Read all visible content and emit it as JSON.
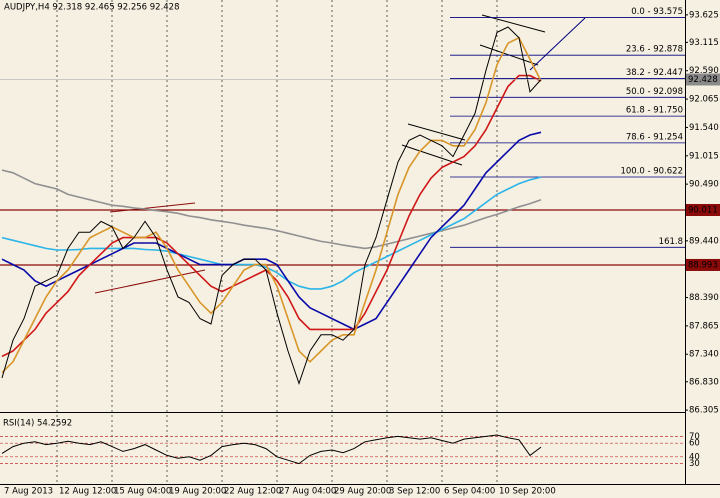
{
  "chart_data": [
    {
      "type": "line",
      "title": "AUDJPY,H4  92.318 92.465 92.256 92.428",
      "categories": [
        "7 Aug 2013",
        null,
        null,
        null,
        null,
        "12 Aug 12:00",
        null,
        null,
        null,
        null,
        "15 Aug 04:00",
        null,
        null,
        null,
        null,
        "19 Aug 20:00",
        null,
        null,
        null,
        null,
        "22 Aug 12:00",
        null,
        null,
        null,
        null,
        "27 Aug 04:00",
        null,
        null,
        null,
        null,
        "29 Aug 20:00",
        null,
        null,
        null,
        null,
        "3 Sep 12:00",
        null,
        null,
        null,
        null,
        "6 Sep 04:00",
        null,
        null,
        null,
        null,
        "10 Sep 20:00",
        null,
        null,
        null,
        null
      ],
      "ylim": [
        86.27,
        93.9
      ],
      "yticks": [
        93.625,
        93.115,
        {
          "value": 92.59,
          "label": "92.590"
        },
        92.065,
        {
          "value": 91.54,
          "label": "91.540"
        },
        91.015,
        {
          "value": 90.49,
          "label": "90.490"
        },
        {
          "value": 89.44,
          "label": "89.440"
        },
        {
          "value": 88.39,
          "label": "88.390"
        },
        87.865,
        {
          "value": 87.34,
          "label": "87.340"
        },
        {
          "value": 86.83,
          "label": "86.830"
        },
        86.305
      ],
      "grid": true,
      "series": [
        {
          "color": "#000000",
          "values": [
            86.9,
            87.6,
            88.0,
            88.6,
            88.7,
            88.8,
            89.3,
            89.6,
            89.6,
            89.8,
            89.7,
            89.3,
            89.5,
            89.8,
            89.5,
            88.9,
            88.4,
            88.3,
            88.0,
            87.9,
            88.8,
            89.0,
            89.1,
            89.1,
            88.9,
            88.1,
            87.4,
            86.8,
            87.4,
            87.7,
            87.7,
            87.6,
            87.8,
            89.0,
            89.5,
            90.2,
            90.9,
            91.3,
            91.4,
            91.3,
            91.2,
            91.0,
            91.4,
            91.8,
            92.6,
            93.3,
            93.4,
            93.2,
            92.2,
            92.428
          ]
        },
        {
          "color": "#d8962a",
          "values": [
            87.0,
            87.2,
            87.6,
            88.0,
            88.4,
            88.7,
            88.9,
            89.2,
            89.5,
            89.6,
            89.7,
            89.6,
            89.5,
            89.5,
            89.6,
            89.3,
            88.9,
            88.6,
            88.3,
            88.1,
            88.3,
            88.6,
            88.9,
            89.0,
            89.0,
            88.6,
            88.0,
            87.4,
            87.2,
            87.4,
            87.6,
            87.7,
            87.7,
            88.3,
            88.9,
            89.6,
            90.3,
            90.8,
            91.1,
            91.3,
            91.3,
            91.2,
            91.2,
            91.5,
            92.0,
            92.7,
            93.1,
            93.2,
            92.8,
            92.4
          ]
        },
        {
          "color": "#d01818",
          "values": [
            87.3,
            87.4,
            87.6,
            87.8,
            88.1,
            88.3,
            88.5,
            88.8,
            89.0,
            89.2,
            89.4,
            89.5,
            89.5,
            89.5,
            89.5,
            89.4,
            89.2,
            89.0,
            88.8,
            88.6,
            88.5,
            88.6,
            88.7,
            88.8,
            88.9,
            88.7,
            88.4,
            88.0,
            87.8,
            87.8,
            87.8,
            87.8,
            87.8,
            88.1,
            88.5,
            88.9,
            89.4,
            89.9,
            90.3,
            90.6,
            90.8,
            90.9,
            91.0,
            91.2,
            91.5,
            91.9,
            92.3,
            92.5,
            92.5,
            92.4
          ]
        },
        {
          "color": "#0a0aa8",
          "values": [
            89.1,
            89.0,
            88.9,
            88.7,
            88.6,
            88.7,
            88.8,
            88.9,
            89.0,
            89.1,
            89.2,
            89.3,
            89.4,
            89.4,
            89.4,
            89.3,
            89.2,
            89.1,
            89.0,
            89.0,
            89.0,
            89.0,
            89.1,
            89.1,
            89.1,
            89.0,
            88.7,
            88.4,
            88.2,
            88.1,
            88.0,
            87.9,
            87.8,
            87.9,
            88.0,
            88.3,
            88.6,
            88.9,
            89.2,
            89.5,
            89.7,
            89.9,
            90.1,
            90.4,
            90.7,
            90.9,
            91.1,
            91.3,
            91.4,
            91.45
          ]
        },
        {
          "color": "#2ab4e8",
          "values": [
            89.5,
            89.45,
            89.4,
            89.35,
            89.3,
            89.27,
            89.27,
            89.28,
            89.3,
            89.3,
            89.3,
            89.3,
            89.3,
            89.28,
            89.27,
            89.25,
            89.2,
            89.15,
            89.1,
            89.05,
            89.0,
            89.0,
            89.0,
            89.0,
            88.95,
            88.85,
            88.7,
            88.6,
            88.55,
            88.55,
            88.6,
            88.7,
            88.85,
            88.95,
            89.05,
            89.15,
            89.25,
            89.35,
            89.45,
            89.55,
            89.65,
            89.75,
            89.85,
            90.0,
            90.15,
            90.3,
            90.4,
            90.5,
            90.57,
            90.62
          ]
        },
        {
          "color": "#909090",
          "values": [
            90.75,
            90.7,
            90.6,
            90.5,
            90.45,
            90.4,
            90.3,
            90.25,
            90.2,
            90.15,
            90.1,
            90.08,
            90.05,
            90.03,
            90.0,
            89.98,
            89.95,
            89.9,
            89.87,
            89.83,
            89.8,
            89.77,
            89.73,
            89.7,
            89.67,
            89.63,
            89.58,
            89.53,
            89.48,
            89.43,
            89.4,
            89.36,
            89.33,
            89.3,
            89.33,
            89.38,
            89.43,
            89.48,
            89.53,
            89.58,
            89.63,
            89.68,
            89.73,
            89.8,
            89.87,
            89.93,
            90.0,
            90.07,
            90.13,
            90.2
          ]
        }
      ],
      "hlines": [
        {
          "value": 90.011,
          "color": "#8b0a0a"
        },
        {
          "value": 88.993,
          "color": "#8b0a0a"
        }
      ],
      "last_price": 92.428,
      "fib_color": "#000080",
      "fib_levels": [
        {
          "label": "0.0 - 93.575",
          "value": 93.575
        },
        {
          "label": "23.6 - 92.878",
          "value": 92.878
        },
        {
          "label": "38.2 - 92.447",
          "value": 92.447
        },
        {
          "label": "50.0 - 92.098",
          "value": 92.098
        },
        {
          "label": "61.8 - 91.750",
          "value": 91.75
        },
        {
          "label": "78.6 - 91.254",
          "value": 91.254
        },
        {
          "label": "100.0 - 90.622",
          "value": 90.622
        },
        {
          "label": "161.8",
          "value": 89.32
        }
      ]
    },
    {
      "type": "line",
      "title": "RSI(14) 54.2592",
      "ylim": [
        0,
        100
      ],
      "yticks": [
        70,
        60,
        40,
        30
      ],
      "level_color": "#c03030",
      "color": "#000000",
      "values": [
        45,
        55,
        60,
        62,
        58,
        60,
        63,
        60,
        58,
        62,
        55,
        48,
        52,
        58,
        50,
        42,
        38,
        40,
        35,
        42,
        55,
        58,
        60,
        58,
        52,
        40,
        35,
        30,
        42,
        48,
        50,
        46,
        52,
        62,
        65,
        68,
        70,
        68,
        66,
        68,
        64,
        60,
        66,
        68,
        70,
        72,
        68,
        65,
        42,
        54.2592
      ]
    }
  ]
}
